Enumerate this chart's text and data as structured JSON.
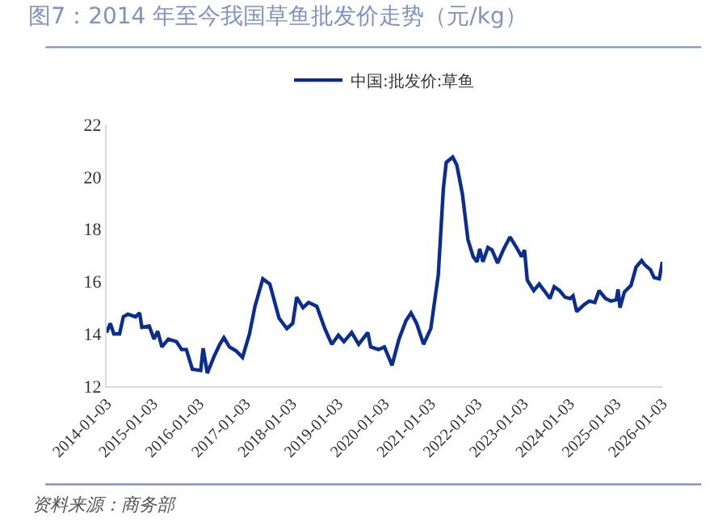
{
  "chart_data": {
    "type": "line",
    "title": "图7：2014 年至今我国草鱼批发价走势（元/kg）",
    "annotations": [
      "资料来源：商务部"
    ],
    "x": [
      "2014-01-03",
      "2014-02-01",
      "2014-03-01",
      "2014-04-15",
      "2014-05-15",
      "2014-06-20",
      "2014-08-20",
      "2014-09-20",
      "2014-10-08",
      "2014-12-05",
      "2015-01-12",
      "2015-02-10",
      "2015-03-15",
      "2015-05-05",
      "2015-07-08",
      "2015-08-18",
      "2015-09-24",
      "2015-11-10",
      "2016-01-15",
      "2016-02-03",
      "2016-03-07",
      "2016-05-01",
      "2016-06-14",
      "2016-07-16",
      "2016-08-29",
      "2016-10-20",
      "2016-12-10",
      "2017-02-03",
      "2017-03-18",
      "2017-05-19",
      "2017-07-13",
      "2017-09-24",
      "2017-11-25",
      "2018-01-10",
      "2018-02-10",
      "2018-04-01",
      "2018-05-15",
      "2018-07-19",
      "2018-09-20",
      "2018-11-14",
      "2019-01-05",
      "2019-02-18",
      "2019-04-20",
      "2019-06-14",
      "2019-08-25",
      "2019-09-17",
      "2019-11-17",
      "2020-01-03",
      "2020-03-03",
      "2020-04-27",
      "2020-06-21",
      "2020-07-31",
      "2020-09-13",
      "2020-11-07",
      "2021-01-03",
      "2021-03-03",
      "2021-04-12",
      "2021-05-05",
      "2021-06-25",
      "2021-07-27",
      "2021-09-09",
      "2021-10-23",
      "2021-12-03",
      "2022-01-03",
      "2022-01-24",
      "2022-02-18",
      "2022-03-30",
      "2022-05-01",
      "2022-06-14",
      "2022-07-28",
      "2022-09-20",
      "2022-11-10",
      "2022-12-20",
      "2023-01-12",
      "2023-02-03",
      "2023-03-26",
      "2023-05-08",
      "2023-07-02",
      "2023-08-01",
      "2023-09-03",
      "2023-10-16",
      "2023-11-28",
      "2024-01-08",
      "2024-01-30",
      "2024-02-28",
      "2024-04-23",
      "2024-06-06",
      "2024-07-20",
      "2024-08-22",
      "2024-10-12",
      "2024-11-25",
      "2025-01-05",
      "2025-01-19",
      "2025-02-03",
      "2025-03-10",
      "2025-05-01",
      "2025-06-10",
      "2025-07-24",
      "2025-08-15",
      "2025-10-01",
      "2025-10-30",
      "2025-12-10",
      "2026-01-03"
    ],
    "series": [
      {
        "name": "中国:批发价:草鱼",
        "color": "#0b2d8f",
        "values": [
          14.05,
          14.4,
          14.0,
          14.0,
          14.65,
          14.75,
          14.65,
          14.8,
          14.25,
          14.3,
          13.8,
          14.1,
          13.5,
          13.8,
          13.7,
          13.4,
          13.4,
          12.65,
          12.6,
          13.45,
          12.5,
          13.15,
          13.6,
          13.85,
          13.5,
          13.35,
          13.1,
          14.0,
          15.05,
          16.1,
          15.9,
          14.6,
          14.2,
          14.4,
          15.4,
          15.0,
          15.2,
          15.05,
          14.2,
          13.6,
          13.95,
          13.7,
          14.05,
          13.6,
          14.05,
          13.5,
          13.4,
          13.5,
          12.8,
          13.8,
          14.5,
          14.8,
          14.4,
          13.6,
          14.2,
          16.25,
          19.55,
          20.55,
          20.75,
          20.45,
          19.35,
          17.6,
          16.95,
          16.75,
          17.25,
          16.75,
          17.3,
          17.2,
          16.7,
          17.2,
          17.7,
          17.3,
          16.95,
          17.2,
          16.05,
          15.65,
          15.9,
          15.55,
          15.35,
          15.8,
          15.65,
          15.4,
          15.35,
          15.45,
          14.85,
          15.1,
          15.25,
          15.2,
          15.65,
          15.35,
          15.25,
          15.3,
          15.7,
          15.0,
          15.6,
          15.85,
          16.55,
          16.8,
          16.65,
          16.45,
          16.15,
          16.1,
          16.75
        ]
      }
    ],
    "xlim": [
      "2014-01-03",
      "2026-01-03"
    ],
    "xticks": [
      "2014-01-03",
      "2015-01-03",
      "2016-01-03",
      "2017-01-03",
      "2018-01-03",
      "2019-01-03",
      "2020-01-03",
      "2021-01-03",
      "2022-01-03",
      "2023-01-03",
      "2024-01-03",
      "2025-01-03",
      "2026-01-03"
    ],
    "ylim": [
      12,
      22
    ],
    "yticks": [
      12,
      14,
      16,
      18,
      20,
      22
    ],
    "grid": false,
    "legend": "top",
    "marker": "none",
    "line_style": "solid"
  }
}
